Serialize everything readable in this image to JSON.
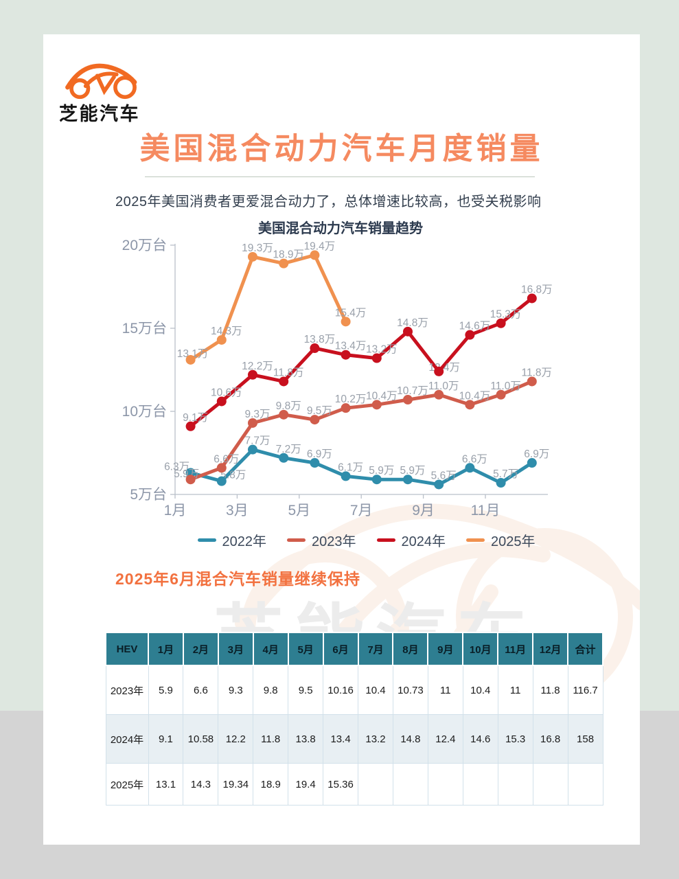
{
  "page": {
    "brand_logo_text": "芝能汽车",
    "title": "美国混合动力汽车月度销量",
    "subtitle": "2025年美国消费者更爱混合动力了，总体增速比较高，也受关税影响",
    "section_title": "2025年6月混合汽车销量继续保持",
    "watermark_text": "芝能汽车"
  },
  "colors": {
    "brand_orange": "#f16a22",
    "title_coral": "#f58a60",
    "table_header_teal": "#2e7e91",
    "axis_text": "#8c96a8",
    "data_label": "#99a0aa"
  },
  "chart_data": {
    "type": "line",
    "title": "美国混合动力汽车销量趋势",
    "categories": [
      "1月",
      "2月",
      "3月",
      "4月",
      "5月",
      "6月",
      "7月",
      "8月",
      "9月",
      "10月",
      "11月",
      "12月"
    ],
    "shown_x_ticks": [
      "1月",
      "3月",
      "5月",
      "7月",
      "9月",
      "11月"
    ],
    "y_ticks": [
      5,
      10,
      15,
      20
    ],
    "y_tick_suffix": "万台",
    "ylim": [
      5,
      20.5
    ],
    "unit": "万",
    "grid": false,
    "legend_position": "bottom",
    "series": [
      {
        "name": "2022年",
        "color": "#2f8dab",
        "values": [
          6.3,
          5.8,
          7.7,
          7.2,
          6.9,
          6.1,
          5.9,
          5.9,
          5.6,
          6.6,
          5.7,
          6.9
        ],
        "labels": [
          "6.3万",
          "5.8万",
          "7.7万",
          "7.2万",
          "6.9万",
          "6.1万",
          "5.9万",
          "5.9万",
          "5.6万",
          "6.6万",
          "5.7万",
          "6.9万"
        ],
        "offsets": {
          "0": [
            -20,
            -4
          ],
          "1": [
            17,
            -4
          ]
        }
      },
      {
        "name": "2023年",
        "color": "#d05c4b",
        "values": [
          5.9,
          6.6,
          9.3,
          9.8,
          9.5,
          10.2,
          10.4,
          10.7,
          11.0,
          10.4,
          11.0,
          11.8
        ],
        "labels": [
          "5.9万",
          "6.6万",
          "9.3万",
          "9.8万",
          "9.5万",
          "10.2万",
          "10.4万",
          "10.7万",
          "11.0万",
          "10.4万",
          "11.0万",
          "11.8万"
        ],
        "offsets": {
          "0": [
            -6,
            -3
          ]
        }
      },
      {
        "name": "2024年",
        "color": "#c8101e",
        "values": [
          9.1,
          10.6,
          12.2,
          11.8,
          13.8,
          13.4,
          13.2,
          14.8,
          12.4,
          14.6,
          15.3,
          16.8
        ],
        "labels": [
          "9.1万",
          "10.6万",
          "12.2万",
          "11.8万",
          "13.8万",
          "13.4万",
          "13.2万",
          "14.8万",
          "12.4万",
          "14.6万",
          "15.3万",
          "16.8万"
        ],
        "offsets": {
          "8": [
            8,
            -1
          ]
        }
      },
      {
        "name": "2025年",
        "color": "#f0914f",
        "values": [
          13.1,
          14.3,
          19.3,
          18.9,
          19.4,
          15.4
        ],
        "labels": [
          "13.1万",
          "14.3万",
          "19.3万",
          "18.9万",
          "19.4万",
          "15.4万"
        ],
        "offsets": {
          "0": [
            3,
            -4
          ]
        }
      }
    ]
  },
  "table": {
    "columns": [
      "HEV",
      "1月",
      "2月",
      "3月",
      "4月",
      "5月",
      "6月",
      "7月",
      "8月",
      "9月",
      "10月",
      "11月",
      "12月",
      "合计"
    ],
    "rows": [
      {
        "label": "2023年",
        "values": [
          "5.9",
          "6.6",
          "9.3",
          "9.8",
          "9.5",
          "10.16",
          "10.4",
          "10.73",
          "11",
          "10.4",
          "11",
          "11.8",
          "116.7"
        ]
      },
      {
        "label": "2024年",
        "values": [
          "9.1",
          "10.58",
          "12.2",
          "11.8",
          "13.8",
          "13.4",
          "13.2",
          "14.8",
          "12.4",
          "14.6",
          "15.3",
          "16.8",
          "158"
        ]
      },
      {
        "label": "2025年",
        "values": [
          "13.1",
          "14.3",
          "19.34",
          "18.9",
          "19.4",
          "15.36",
          "",
          "",
          "",
          "",
          "",
          "",
          ""
        ]
      }
    ]
  }
}
